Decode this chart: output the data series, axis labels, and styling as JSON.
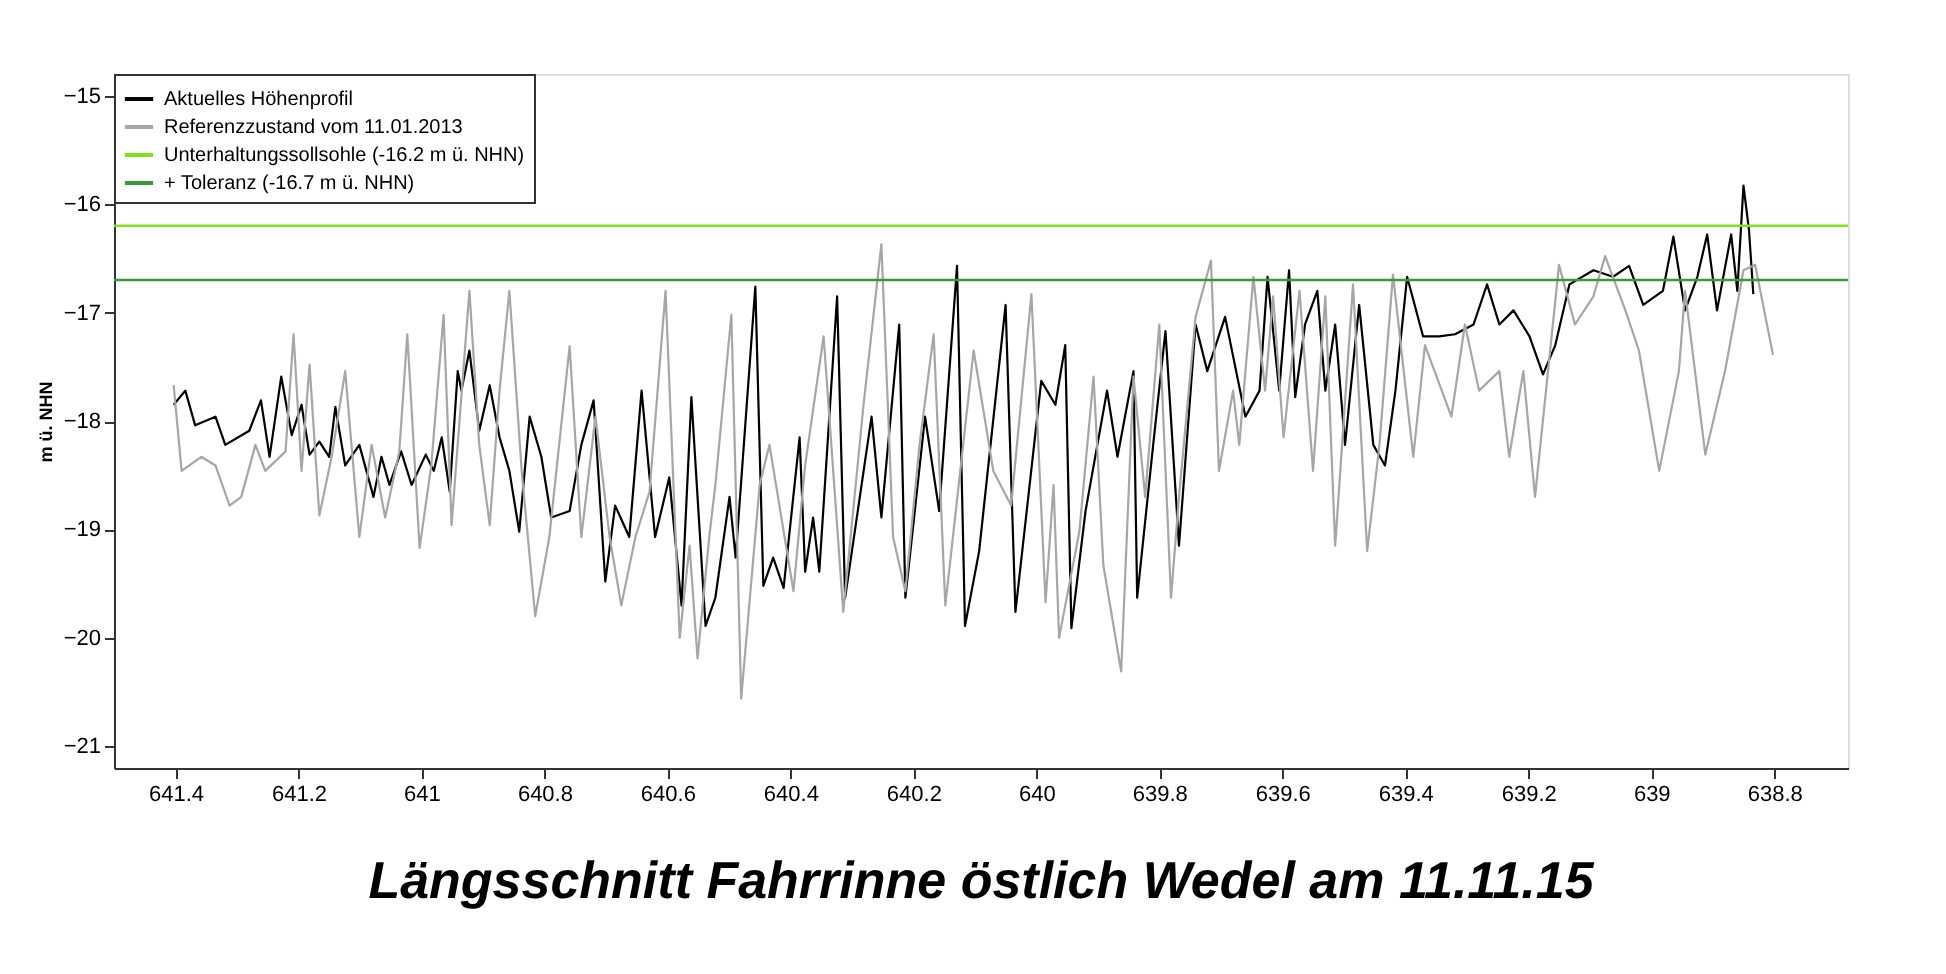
{
  "chart_data": {
    "type": "line",
    "title": "Längsschnitt Fahrrinne östlich Wedel  am 11.11.15",
    "ylabel": "m ü. NHN",
    "xlim": [
      641.5,
      638.68
    ],
    "xticks": [
      641.4,
      641.2,
      641,
      640.8,
      640.6,
      640.4,
      640.2,
      640,
      639.8,
      639.6,
      639.4,
      639.2,
      639,
      638.8
    ],
    "ylim": [
      -21.2,
      -14.8
    ],
    "yticks": [
      -21,
      -20,
      -19,
      -18,
      -17,
      -16,
      -15
    ],
    "grid": false,
    "legend": "top left",
    "line_style": "solid",
    "marker": "none",
    "series": [
      {
        "name": "Aktuelles Höhenprofil",
        "color": "#000000",
        "x": [
          641.403,
          641.384,
          641.368,
          641.335,
          641.319,
          641.28,
          641.261,
          641.247,
          641.228,
          641.211,
          641.195,
          641.182,
          641.166,
          641.15,
          641.14,
          641.124,
          641.101,
          641.078,
          641.065,
          641.052,
          641.033,
          641.016,
          640.993,
          640.98,
          640.967,
          640.954,
          640.941,
          640.935,
          640.922,
          640.906,
          640.889,
          640.873,
          640.857,
          640.841,
          640.824,
          640.805,
          640.789,
          640.759,
          640.74,
          640.72,
          640.701,
          640.685,
          640.662,
          640.642,
          640.62,
          640.597,
          640.577,
          640.561,
          640.538,
          640.522,
          640.499,
          640.489,
          640.457,
          640.444,
          640.428,
          640.411,
          640.385,
          640.376,
          640.363,
          640.353,
          640.324,
          640.311,
          640.268,
          640.252,
          640.223,
          640.213,
          640.181,
          640.158,
          640.129,
          640.116,
          640.093,
          640.05,
          640.034,
          639.992,
          639.969,
          639.953,
          639.943,
          639.92,
          639.885,
          639.868,
          639.842,
          639.836,
          639.81,
          639.79,
          639.768,
          639.741,
          639.722,
          639.693,
          639.66,
          639.637,
          639.624,
          639.605,
          639.589,
          639.579,
          639.563,
          639.543,
          639.53,
          639.514,
          639.498,
          639.475,
          639.452,
          639.433,
          639.416,
          639.397,
          639.371,
          639.345,
          639.319,
          639.289,
          639.267,
          639.247,
          639.224,
          639.198,
          639.176,
          639.156,
          639.133,
          639.094,
          639.062,
          639.036,
          639.013,
          638.981,
          638.964,
          638.945,
          638.925,
          638.909,
          638.893,
          638.87,
          638.86,
          638.85,
          638.841,
          638.834
        ],
        "values": [
          -17.85,
          -17.72,
          -18.04,
          -17.96,
          -18.22,
          -18.09,
          -17.81,
          -18.33,
          -17.59,
          -18.13,
          -17.85,
          -18.31,
          -18.19,
          -18.33,
          -17.87,
          -18.41,
          -18.22,
          -18.7,
          -18.33,
          -18.59,
          -18.28,
          -18.59,
          -18.31,
          -18.46,
          -18.15,
          -18.65,
          -17.54,
          -17.72,
          -17.35,
          -18.09,
          -17.67,
          -18.15,
          -18.46,
          -19.02,
          -17.96,
          -18.33,
          -18.89,
          -18.83,
          -18.22,
          -17.81,
          -19.48,
          -18.78,
          -19.07,
          -17.72,
          -19.07,
          -18.52,
          -19.7,
          -17.78,
          -19.89,
          -19.63,
          -18.7,
          -19.26,
          -16.76,
          -19.52,
          -19.26,
          -19.54,
          -18.15,
          -19.39,
          -18.89,
          -19.39,
          -16.85,
          -19.63,
          -17.96,
          -18.89,
          -17.11,
          -19.63,
          -17.96,
          -18.83,
          -16.57,
          -19.89,
          -19.2,
          -16.93,
          -19.76,
          -17.63,
          -17.85,
          -17.3,
          -19.91,
          -18.83,
          -17.72,
          -18.33,
          -17.54,
          -19.63,
          -18.22,
          -17.17,
          -19.15,
          -17.11,
          -17.54,
          -17.04,
          -17.96,
          -17.72,
          -16.67,
          -17.72,
          -16.61,
          -17.78,
          -17.11,
          -16.8,
          -17.72,
          -17.11,
          -18.22,
          -16.93,
          -18.22,
          -18.41,
          -17.72,
          -16.67,
          -17.22,
          -17.22,
          -17.2,
          -17.11,
          -16.74,
          -17.11,
          -16.98,
          -17.22,
          -17.57,
          -17.3,
          -16.74,
          -16.61,
          -16.67,
          -16.57,
          -16.93,
          -16.8,
          -16.3,
          -16.98,
          -16.67,
          -16.28,
          -16.98,
          -16.28,
          -16.8,
          -15.83,
          -16.24,
          -16.83
        ]
      },
      {
        "name": "Referenzzustand vom 11.01.2013",
        "color": "#a6a6a6",
        "x": [
          641.403,
          641.39,
          641.358,
          641.335,
          641.312,
          641.293,
          641.27,
          641.254,
          641.221,
          641.208,
          641.195,
          641.182,
          641.166,
          641.146,
          641.124,
          641.101,
          641.081,
          641.059,
          641.036,
          641.023,
          641.003,
          640.984,
          640.964,
          640.951,
          640.922,
          640.906,
          640.889,
          640.873,
          640.857,
          640.837,
          640.815,
          640.792,
          640.759,
          640.74,
          640.717,
          640.694,
          640.675,
          640.652,
          640.629,
          640.603,
          640.58,
          640.564,
          640.551,
          640.532,
          640.522,
          640.496,
          640.48,
          640.45,
          640.434,
          640.395,
          640.376,
          640.346,
          640.314,
          640.281,
          640.252,
          640.233,
          640.213,
          640.19,
          640.167,
          640.148,
          640.102,
          640.07,
          640.041,
          640.008,
          639.985,
          639.972,
          639.963,
          639.93,
          639.907,
          639.891,
          639.862,
          639.842,
          639.823,
          639.8,
          639.781,
          639.768,
          639.741,
          639.716,
          639.703,
          639.68,
          639.67,
          639.647,
          639.628,
          639.615,
          639.598,
          639.572,
          639.55,
          639.53,
          639.514,
          639.485,
          639.462,
          639.442,
          639.42,
          639.387,
          639.368,
          639.325,
          639.303,
          639.28,
          639.247,
          639.231,
          639.208,
          639.189,
          639.15,
          639.124,
          639.094,
          639.075,
          639.042,
          639.02,
          638.987,
          638.955,
          638.945,
          638.912,
          638.88,
          638.85,
          638.831,
          638.802
        ],
        "values": [
          -17.67,
          -18.46,
          -18.33,
          -18.41,
          -18.78,
          -18.7,
          -18.22,
          -18.46,
          -18.28,
          -17.2,
          -18.46,
          -17.48,
          -18.87,
          -18.33,
          -17.54,
          -19.07,
          -18.22,
          -18.89,
          -18.28,
          -17.2,
          -19.17,
          -18.41,
          -17.02,
          -18.96,
          -16.8,
          -18.22,
          -18.96,
          -17.72,
          -16.8,
          -18.46,
          -19.8,
          -19.07,
          -17.31,
          -19.07,
          -17.96,
          -19.07,
          -19.7,
          -19.07,
          -18.65,
          -16.8,
          -20.0,
          -19.15,
          -20.19,
          -19.07,
          -18.59,
          -17.02,
          -20.56,
          -18.59,
          -18.22,
          -19.57,
          -18.41,
          -17.22,
          -19.76,
          -17.85,
          -16.37,
          -19.07,
          -19.57,
          -18.22,
          -17.2,
          -19.7,
          -17.35,
          -18.46,
          -18.78,
          -16.83,
          -19.67,
          -18.59,
          -20.0,
          -19.02,
          -17.59,
          -19.33,
          -20.31,
          -17.59,
          -18.7,
          -17.11,
          -19.63,
          -18.7,
          -17.04,
          -16.52,
          -18.46,
          -17.72,
          -18.22,
          -16.67,
          -17.72,
          -16.85,
          -18.15,
          -16.8,
          -18.46,
          -16.85,
          -19.15,
          -16.74,
          -19.2,
          -18.22,
          -16.65,
          -18.33,
          -17.3,
          -17.96,
          -17.11,
          -17.72,
          -17.54,
          -18.33,
          -17.54,
          -18.7,
          -16.56,
          -17.11,
          -16.85,
          -16.48,
          -16.98,
          -17.35,
          -18.46,
          -17.54,
          -16.8,
          -18.31,
          -17.54,
          -16.61,
          -16.56,
          -17.39
        ]
      }
    ],
    "ref_lines": [
      {
        "axis": "y",
        "value": -16.2,
        "label": "Unterhaltungssollsohle (-16.2 m ü. NHN)",
        "color": "#7fe31c",
        "line_style": "solid"
      },
      {
        "axis": "y",
        "value": -16.7,
        "label": "+ Toleranz (-16.7 m ü. NHN)",
        "color": "#3a9a3a",
        "line_style": "solid"
      }
    ]
  }
}
